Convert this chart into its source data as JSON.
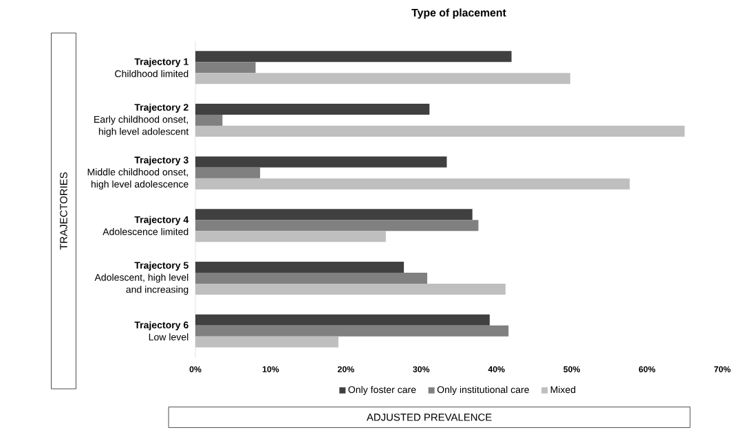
{
  "chart_data": {
    "type": "bar",
    "orientation": "horizontal",
    "title": "Type of placement",
    "xlabel": "ADJUSTED PREVALENCE",
    "ylabel": "TRAJECTORIES",
    "categories": [
      "**Trajectory 1**\nChildhood limited",
      "**Trajectory 2**\nEarly childhood onset,\nhigh level adolescent",
      "**Trajectory 3**\nMiddle childhood onset,\nhigh level adolescence",
      "**Trajectory 4**\nAdolescence limited",
      "**Trajectory 5**\nAdolescent, high level\nand increasing",
      "**Trajectory 6**\nLow level"
    ],
    "series": [
      {
        "name": "Only foster care",
        "color": "#404040",
        "values": [
          42.0,
          31.1,
          33.4,
          36.8,
          27.7,
          39.1
        ]
      },
      {
        "name": "Only institutional care",
        "color": "#808080",
        "values": [
          8.0,
          3.6,
          8.6,
          37.6,
          30.8,
          41.6
        ]
      },
      {
        "name": "Mixed",
        "color": "#bfbfbf",
        "values": [
          49.8,
          65.0,
          57.7,
          25.3,
          41.2,
          19.0
        ]
      }
    ],
    "xlim": [
      0,
      70
    ],
    "xticks": [
      {
        "value": 0,
        "label": "0%"
      },
      {
        "value": 10,
        "label": "10%"
      },
      {
        "value": 20,
        "label": "20%"
      },
      {
        "value": 30,
        "label": "30%"
      },
      {
        "value": 40,
        "label": "40%"
      },
      {
        "value": 50,
        "label": "50%"
      },
      {
        "value": 60,
        "label": "60%"
      },
      {
        "value": 70,
        "label": "70%"
      }
    ],
    "legend": "bottom"
  }
}
